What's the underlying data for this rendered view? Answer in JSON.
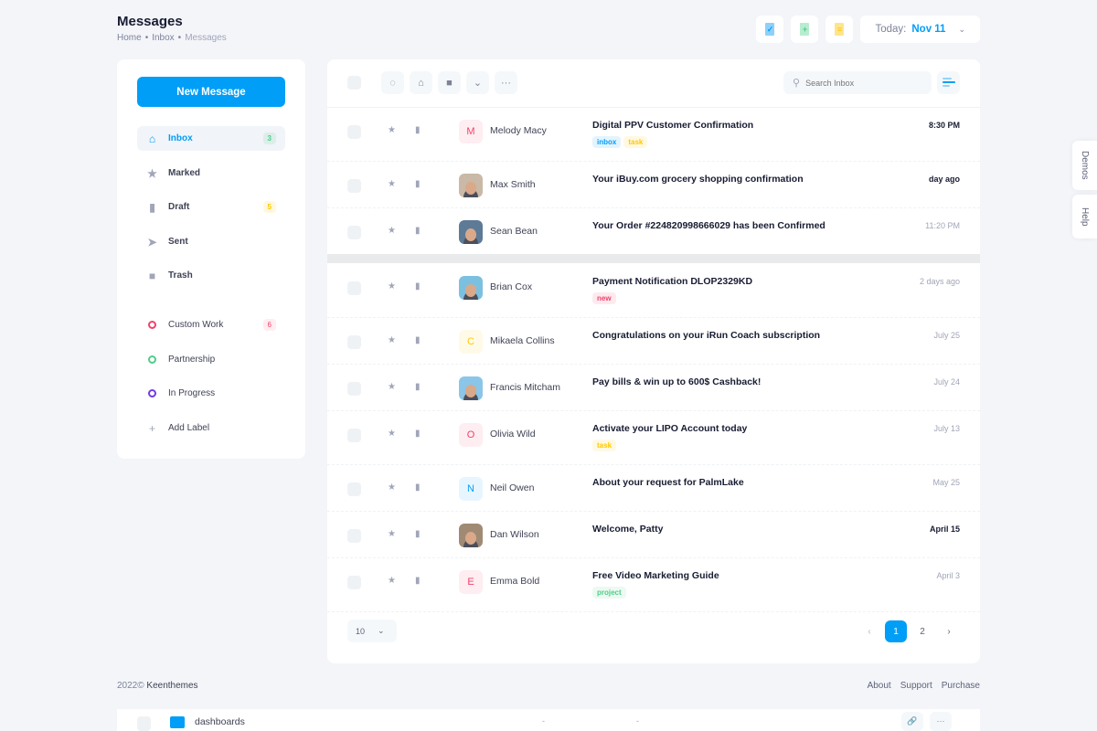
{
  "header": {
    "title": "Messages",
    "breadcrumbs": [
      "Home",
      "Inbox",
      "Messages"
    ],
    "date_label": "Today:",
    "date_value": "Nov 11",
    "tool_icons": [
      "file-check-icon",
      "file-plus-icon",
      "file-text-icon"
    ]
  },
  "sidebar": {
    "new_message": "New Message",
    "items": [
      {
        "label": "Inbox",
        "icon": "inbox-icon",
        "badge": "3",
        "badge_color": "#50cd89",
        "active": true
      },
      {
        "label": "Marked",
        "icon": "star-icon"
      },
      {
        "label": "Draft",
        "icon": "draft-icon",
        "badge": "5",
        "badge_color": "#ffc700"
      },
      {
        "label": "Sent",
        "icon": "send-icon"
      },
      {
        "label": "Trash",
        "icon": "trash-icon"
      }
    ],
    "labels": [
      {
        "label": "Custom Work",
        "color": "#f1416c",
        "badge": "6"
      },
      {
        "label": "Partnership",
        "color": "#50cd89"
      },
      {
        "label": "In Progress",
        "color": "#7239ea"
      },
      {
        "label": "Add Label",
        "icon": "plus-icon"
      }
    ]
  },
  "toolbar": {
    "search_placeholder": "Search Inbox"
  },
  "messages": [
    {
      "sender": "Melody Macy",
      "initial": "M",
      "avatar_color": "#f1416c",
      "subject": "Digital PPV Customer Confirmation",
      "tags": [
        "inbox",
        "task"
      ],
      "time": "8:30 PM",
      "unread": true
    },
    {
      "sender": "Max Smith",
      "photo": true,
      "subject": "Your iBuy.com grocery shopping confirmation",
      "tags": [],
      "time": "day ago",
      "unread": true
    },
    {
      "sender": "Sean Bean",
      "photo": true,
      "subject": "Your Order #224820998666029 has been Confirmed",
      "tags": [],
      "time": "11:20 PM",
      "unread": false
    },
    {
      "sender": "Brian Cox",
      "photo": true,
      "subject": "Payment Notification DLOP2329KD",
      "tags": [
        "new"
      ],
      "time": "2 days ago",
      "unread": false
    },
    {
      "sender": "Mikaela Collins",
      "initial": "C",
      "avatar_color": "#ffc700",
      "subject": "Congratulations on your iRun Coach subscription",
      "tags": [],
      "time": "July 25",
      "unread": false
    },
    {
      "sender": "Francis Mitcham",
      "photo": true,
      "subject": "Pay bills & win up to 600$ Cashback!",
      "tags": [],
      "time": "July 24",
      "unread": false
    },
    {
      "sender": "Olivia Wild",
      "initial": "O",
      "avatar_color": "#f1416c",
      "subject": "Activate your LIPO Account today",
      "tags": [
        "task"
      ],
      "time": "July 13",
      "unread": false
    },
    {
      "sender": "Neil Owen",
      "initial": "N",
      "avatar_color": "#009ef7",
      "subject": "About your request for PalmLake",
      "tags": [],
      "time": "May 25",
      "unread": false
    },
    {
      "sender": "Dan Wilson",
      "photo": true,
      "subject": "Welcome, Patty",
      "tags": [],
      "time": "April 15",
      "unread": true
    },
    {
      "sender": "Emma Bold",
      "initial": "E",
      "avatar_color": "#f1416c",
      "subject": "Free Video Marketing Guide",
      "tags": [
        "project"
      ],
      "time": "April 3",
      "unread": false
    }
  ],
  "pagination": {
    "per_page": "10",
    "pages": [
      "1",
      "2"
    ],
    "current": "1"
  },
  "footer": {
    "year": "2022©",
    "brand": "Keenthemes",
    "links": [
      "About",
      "Support",
      "Purchase"
    ]
  },
  "bottom_row": {
    "name": "dashboards",
    "col1": "-",
    "col2": "-"
  },
  "side_tabs": [
    "Demos",
    "Help"
  ],
  "colors": {
    "primary": "#009ef7",
    "inbox_tag": "#009ef7",
    "task_tag": "#ffc700",
    "new_tag": "#f1416c",
    "project_tag": "#50cd89"
  }
}
